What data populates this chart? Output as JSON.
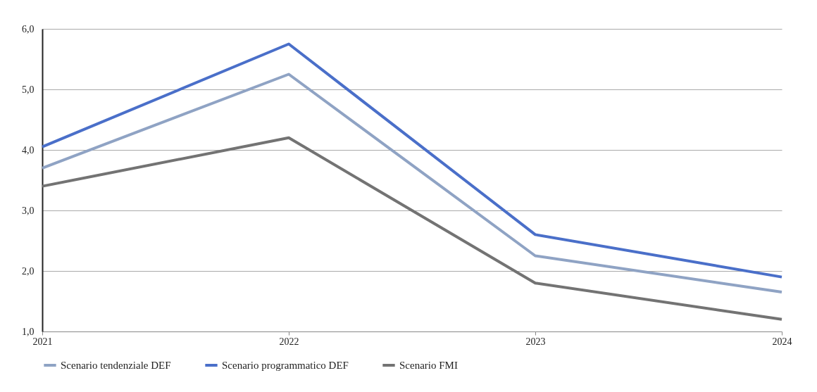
{
  "chart_data": {
    "type": "line",
    "categories": [
      "2021",
      "2022",
      "2023",
      "2024"
    ],
    "series": [
      {
        "name": "Scenario tendenziale DEF",
        "color": "#8fa3c4",
        "values": [
          3.7,
          5.25,
          2.25,
          1.65
        ]
      },
      {
        "name": "Scenario programmatico DEF",
        "color": "#4a6fc9",
        "values": [
          4.05,
          5.75,
          2.6,
          1.9
        ]
      },
      {
        "name": "Scenario FMI",
        "color": "#737373",
        "values": [
          3.4,
          4.2,
          1.8,
          1.2
        ]
      }
    ],
    "ylim": [
      1,
      6
    ],
    "yticks": [
      {
        "value": 1,
        "label": "1,0"
      },
      {
        "value": 2,
        "label": "2,0"
      },
      {
        "value": 3,
        "label": "3,0"
      },
      {
        "value": 4,
        "label": "4,0"
      },
      {
        "value": 5,
        "label": "5,0"
      },
      {
        "value": 6,
        "label": "6,0"
      }
    ],
    "grid": "y",
    "legend": "bottom",
    "marker": "none",
    "line_style": "solid"
  }
}
